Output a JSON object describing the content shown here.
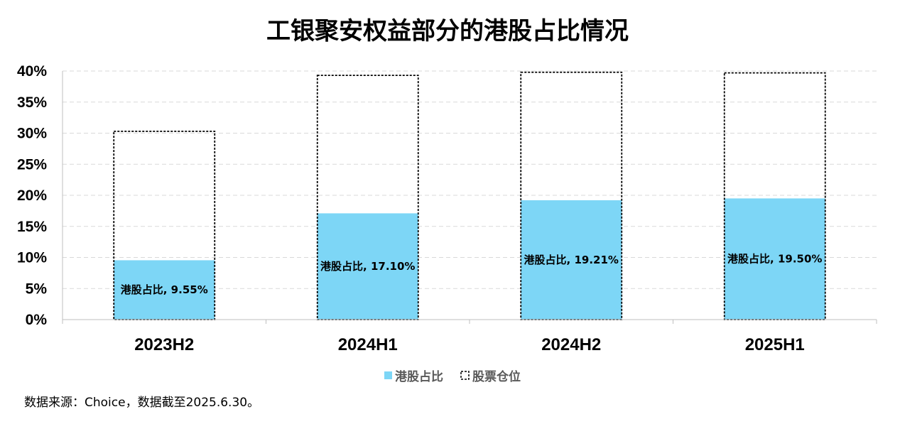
{
  "chart_data": {
    "type": "bar",
    "title": "工银聚安权益部分的港股占比情况",
    "categories": [
      "2023H2",
      "2024H1",
      "2024H2",
      "2025H1"
    ],
    "series": [
      {
        "name": "港股占比",
        "values": [
          9.55,
          17.1,
          19.21,
          19.5
        ],
        "data_labels": [
          "港股占比, 9.55%",
          "港股占比, 17.10%",
          "港股占比, 19.21%",
          "港股占比, 19.50%"
        ],
        "color": "#7dd6f6",
        "style": "filled"
      },
      {
        "name": "股票仓位",
        "values": [
          30.3,
          39.3,
          39.8,
          39.7
        ],
        "color": "#000000",
        "style": "dashed-outline"
      }
    ],
    "ylim": [
      0,
      40
    ],
    "yticks": [
      "0%",
      "5%",
      "10%",
      "15%",
      "20%",
      "25%",
      "30%",
      "35%",
      "40%"
    ],
    "xlabel": "",
    "ylabel": "",
    "grid": true,
    "legend_position": "bottom"
  },
  "source_note": "数据来源：Choice，数据截至2025.6.30。"
}
